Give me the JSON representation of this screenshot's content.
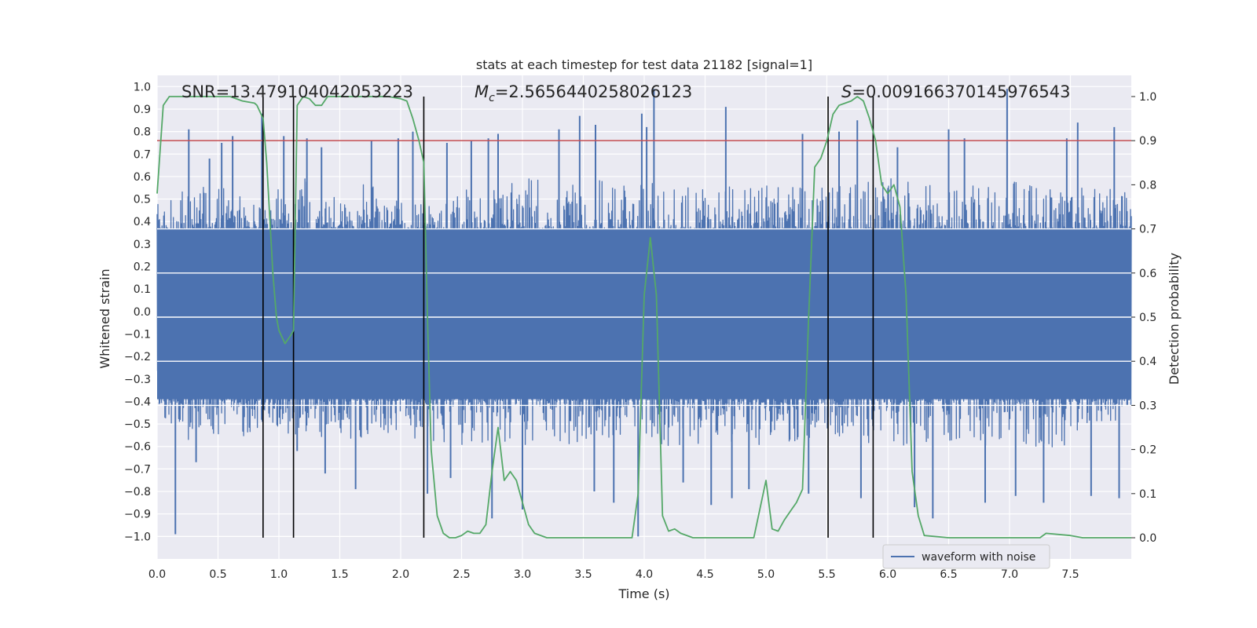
{
  "chart_data": {
    "type": "line",
    "title": "stats at each timestep for test data 21182 [signal=1]",
    "xlabel": "Time (s)",
    "ylabel": "Whitened strain",
    "y2label": "Detection probability",
    "xlim": [
      0.0,
      8.0
    ],
    "ylim": [
      -1.1,
      1.05
    ],
    "y2lim": [
      -0.048,
      1.048
    ],
    "x_ticks": [
      0.0,
      0.5,
      1.0,
      1.5,
      2.0,
      2.5,
      3.0,
      3.5,
      4.0,
      4.5,
      5.0,
      5.5,
      6.0,
      6.5,
      7.0,
      7.5
    ],
    "x_tick_labels": [
      "0.0",
      "0.5",
      "1.0",
      "1.5",
      "2.0",
      "2.5",
      "3.0",
      "3.5",
      "4.0",
      "4.5",
      "5.0",
      "5.5",
      "6.0",
      "6.5",
      "7.0",
      "7.5"
    ],
    "y_ticks": [
      1.0,
      0.9,
      0.8,
      0.7,
      0.6,
      0.5,
      0.4,
      0.3,
      0.2,
      0.1,
      0.0,
      -0.1,
      -0.2,
      -0.3,
      -0.4,
      -0.5,
      -0.6,
      -0.7,
      -0.8,
      -0.9,
      -1.0
    ],
    "y_tick_labels": [
      "1.0",
      "0.9",
      "0.8",
      "0.7",
      "0.6",
      "0.5",
      "0.4",
      "0.3",
      "0.2",
      "0.1",
      "0.0",
      "−0.1",
      "−0.2",
      "−0.3",
      "−0.4",
      "−0.5",
      "−0.6",
      "−0.7",
      "−0.8",
      "−0.9",
      "−1.0"
    ],
    "y2_ticks": [
      1.0,
      0.9,
      0.8,
      0.7,
      0.6,
      0.5,
      0.4,
      0.3,
      0.2,
      0.1,
      0.0
    ],
    "y2_tick_labels": [
      "1.0",
      "0.9",
      "0.8",
      "0.7",
      "0.6",
      "0.5",
      "0.4",
      "0.3",
      "0.2",
      "0.1",
      "0.0"
    ],
    "threshold": 0.9,
    "threshold_color": "#c44e52",
    "vertical_markers": [
      0.87,
      1.12,
      2.19,
      5.51,
      5.88
    ],
    "annotations": {
      "snr": "SNR=13.479104042053223",
      "mc_symbol": "M",
      "mc_sub": "c",
      "mc_value": "=2.5656440258026123",
      "s_symbol": "S",
      "s_value": "=0.009166370145976543"
    },
    "legend": {
      "label": "waveform with noise",
      "position": "lower-right"
    },
    "series": [
      {
        "name": "waveform with noise",
        "axis": "left",
        "color": "#4c72b0",
        "envelope_top": [
          [
            0.0,
            0.48
          ],
          [
            0.1,
            0.5
          ],
          [
            0.2,
            0.58
          ],
          [
            0.3,
            0.52
          ],
          [
            0.4,
            0.6
          ],
          [
            0.5,
            0.55
          ],
          [
            0.6,
            0.58
          ],
          [
            0.7,
            0.62
          ],
          [
            0.8,
            0.5
          ],
          [
            0.9,
            0.45
          ],
          [
            1.0,
            0.55
          ],
          [
            1.1,
            0.5
          ],
          [
            1.2,
            0.6
          ],
          [
            1.4,
            0.52
          ],
          [
            1.6,
            0.55
          ],
          [
            1.8,
            0.58
          ],
          [
            2.0,
            0.5
          ],
          [
            2.2,
            0.48
          ],
          [
            2.5,
            0.55
          ],
          [
            3.0,
            0.6
          ],
          [
            3.5,
            0.58
          ],
          [
            4.0,
            0.6
          ],
          [
            4.5,
            0.55
          ],
          [
            5.0,
            0.58
          ],
          [
            5.5,
            0.55
          ],
          [
            6.0,
            0.6
          ],
          [
            6.5,
            0.55
          ],
          [
            7.0,
            0.58
          ],
          [
            7.5,
            0.55
          ],
          [
            8.0,
            0.55
          ]
        ],
        "envelope_bottom": [
          [
            0.0,
            -0.42
          ],
          [
            0.1,
            -0.5
          ],
          [
            0.2,
            -0.6
          ],
          [
            0.3,
            -0.55
          ],
          [
            0.4,
            -0.58
          ],
          [
            0.5,
            -0.55
          ],
          [
            0.6,
            -0.52
          ],
          [
            0.7,
            -0.55
          ],
          [
            0.8,
            -0.6
          ],
          [
            0.9,
            -0.5
          ],
          [
            1.0,
            -0.52
          ],
          [
            1.1,
            -0.55
          ],
          [
            1.2,
            -0.58
          ],
          [
            1.4,
            -0.55
          ],
          [
            1.6,
            -0.58
          ],
          [
            1.8,
            -0.55
          ],
          [
            2.0,
            -0.55
          ],
          [
            2.2,
            -0.58
          ],
          [
            2.5,
            -0.6
          ],
          [
            3.0,
            -0.62
          ],
          [
            3.5,
            -0.58
          ],
          [
            4.0,
            -0.6
          ],
          [
            4.5,
            -0.6
          ],
          [
            5.0,
            -0.6
          ],
          [
            5.5,
            -0.55
          ],
          [
            6.0,
            -0.6
          ],
          [
            6.5,
            -0.58
          ],
          [
            7.0,
            -0.62
          ],
          [
            7.5,
            -0.6
          ],
          [
            8.0,
            -0.45
          ]
        ],
        "spikes": [
          [
            0.15,
            -0.99
          ],
          [
            0.26,
            0.81
          ],
          [
            0.32,
            -0.67
          ],
          [
            0.43,
            0.68
          ],
          [
            0.53,
            0.75
          ],
          [
            0.62,
            0.78
          ],
          [
            0.86,
            0.88
          ],
          [
            1.04,
            0.78
          ],
          [
            1.15,
            -0.62
          ],
          [
            1.23,
            0.77
          ],
          [
            1.35,
            0.73
          ],
          [
            1.38,
            -0.72
          ],
          [
            1.63,
            -0.79
          ],
          [
            1.76,
            0.76
          ],
          [
            1.98,
            0.77
          ],
          [
            2.1,
            0.8
          ],
          [
            2.22,
            -0.81
          ],
          [
            2.38,
            0.75
          ],
          [
            2.41,
            -0.74
          ],
          [
            2.58,
            0.76
          ],
          [
            2.72,
            0.77
          ],
          [
            2.75,
            -0.92
          ],
          [
            2.8,
            0.79
          ],
          [
            3.0,
            -0.88
          ],
          [
            3.3,
            0.81
          ],
          [
            3.47,
            0.87
          ],
          [
            3.59,
            -0.8
          ],
          [
            3.6,
            0.83
          ],
          [
            3.75,
            -0.85
          ],
          [
            3.95,
            -1.0
          ],
          [
            3.98,
            0.88
          ],
          [
            4.02,
            0.82
          ],
          [
            4.08,
            0.99
          ],
          [
            4.32,
            -0.76
          ],
          [
            4.55,
            -0.86
          ],
          [
            4.67,
            0.91
          ],
          [
            4.72,
            -0.83
          ],
          [
            4.86,
            -0.79
          ],
          [
            5.3,
            0.79
          ],
          [
            5.35,
            -0.81
          ],
          [
            5.6,
            0.8
          ],
          [
            5.75,
            0.85
          ],
          [
            5.78,
            -0.83
          ],
          [
            6.08,
            0.73
          ],
          [
            6.22,
            -0.87
          ],
          [
            6.37,
            -0.92
          ],
          [
            6.5,
            0.81
          ],
          [
            6.63,
            0.77
          ],
          [
            6.8,
            -0.85
          ],
          [
            6.98,
            0.99
          ],
          [
            7.05,
            -0.82
          ],
          [
            7.28,
            -0.85
          ],
          [
            7.47,
            0.77
          ],
          [
            7.56,
            0.84
          ],
          [
            7.67,
            -0.82
          ],
          [
            7.86,
            0.82
          ],
          [
            7.9,
            -0.83
          ]
        ]
      },
      {
        "name": "detection probability",
        "axis": "right",
        "color": "#55a868",
        "x": [
          0.0,
          0.05,
          0.1,
          0.15,
          0.2,
          0.3,
          0.5,
          0.6,
          0.7,
          0.8,
          0.82,
          0.87,
          0.9,
          0.95,
          0.98,
          1.0,
          1.05,
          1.1,
          1.12,
          1.15,
          1.2,
          1.25,
          1.3,
          1.35,
          1.4,
          1.45,
          1.5,
          1.6,
          1.8,
          1.9,
          2.0,
          2.05,
          2.1,
          2.15,
          2.19,
          2.22,
          2.25,
          2.3,
          2.35,
          2.4,
          2.45,
          2.5,
          2.55,
          2.6,
          2.65,
          2.7,
          2.75,
          2.8,
          2.85,
          2.9,
          2.95,
          3.0,
          3.05,
          3.1,
          3.2,
          3.3,
          3.5,
          3.8,
          3.9,
          3.95,
          4.0,
          4.05,
          4.1,
          4.15,
          4.2,
          4.25,
          4.3,
          4.4,
          4.5,
          4.8,
          4.9,
          5.0,
          5.05,
          5.1,
          5.15,
          5.2,
          5.25,
          5.3,
          5.35,
          5.4,
          5.45,
          5.5,
          5.55,
          5.6,
          5.65,
          5.7,
          5.75,
          5.8,
          5.85,
          5.9,
          5.95,
          6.0,
          6.05,
          6.1,
          6.15,
          6.2,
          6.25,
          6.3,
          6.5,
          7.0,
          7.25,
          7.3,
          7.5,
          7.6,
          8.0
        ],
        "values": [
          0.78,
          0.98,
          1.0,
          1.0,
          1.0,
          1.0,
          1.0,
          1.0,
          0.99,
          0.985,
          0.98,
          0.95,
          0.85,
          0.6,
          0.5,
          0.47,
          0.44,
          0.46,
          0.47,
          0.98,
          1.0,
          0.995,
          0.98,
          0.98,
          1.0,
          1.0,
          1.0,
          1.0,
          1.0,
          1.0,
          0.995,
          0.99,
          0.95,
          0.9,
          0.85,
          0.5,
          0.2,
          0.05,
          0.01,
          0.0,
          0.0,
          0.005,
          0.015,
          0.01,
          0.01,
          0.03,
          0.15,
          0.25,
          0.13,
          0.15,
          0.13,
          0.08,
          0.03,
          0.01,
          0.0,
          0.0,
          0.0,
          0.0,
          0.0,
          0.1,
          0.55,
          0.68,
          0.55,
          0.05,
          0.015,
          0.02,
          0.01,
          0.0,
          0.0,
          0.0,
          0.0,
          0.13,
          0.02,
          0.015,
          0.04,
          0.06,
          0.08,
          0.11,
          0.5,
          0.84,
          0.86,
          0.9,
          0.96,
          0.98,
          0.985,
          0.99,
          1.0,
          0.99,
          0.95,
          0.9,
          0.8,
          0.78,
          0.8,
          0.75,
          0.55,
          0.15,
          0.05,
          0.005,
          0.0,
          0.0,
          0.0,
          0.01,
          0.005,
          0.0,
          0.0
        ]
      }
    ]
  }
}
